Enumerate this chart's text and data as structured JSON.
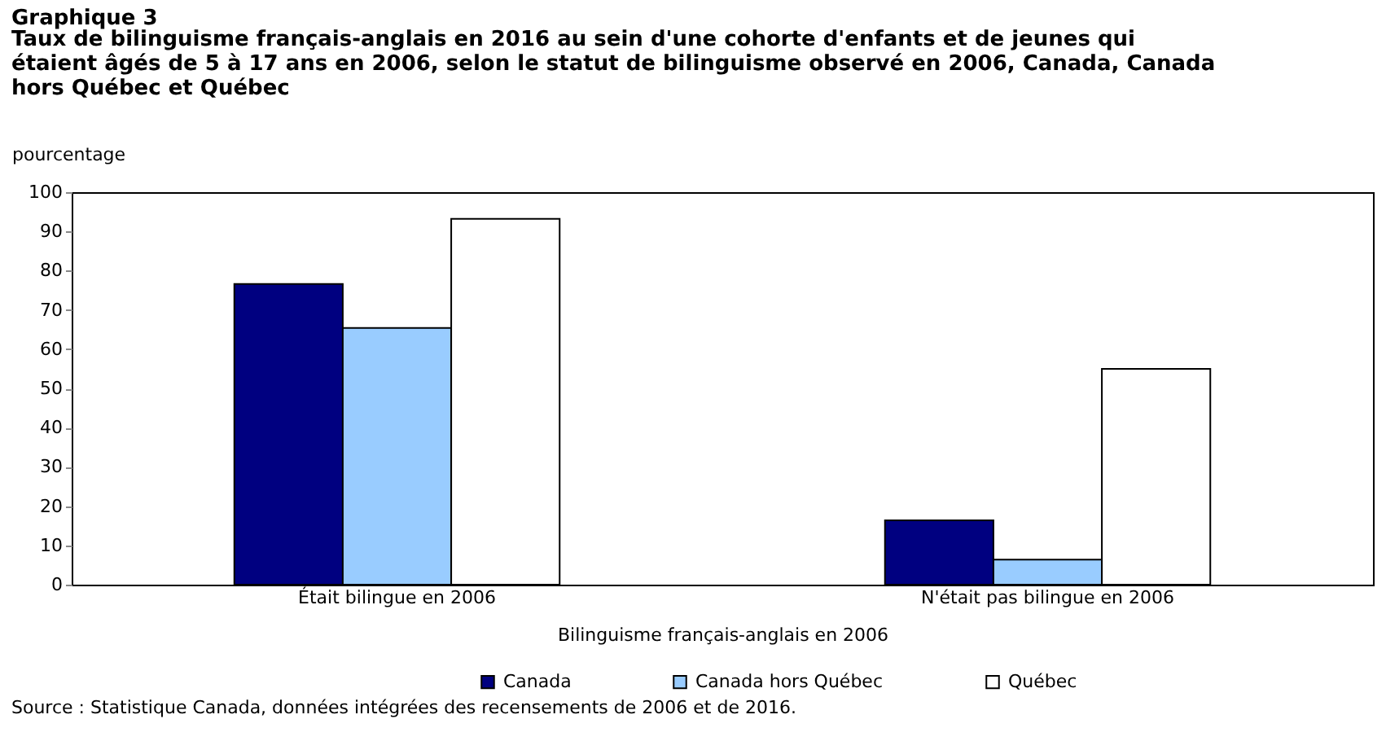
{
  "chart_data": {
    "type": "bar",
    "title": "Graphique 3",
    "subtitle": [
      "Taux de bilinguisme français-anglais en 2016 au sein d'une cohorte d'enfants et de jeunes qui",
      "étaient âgés de 5 à 17 ans en 2006, selon le statut de bilinguisme observé en 2006, Canada, Canada",
      "hors Québec et Québec"
    ],
    "ylabel": "pourcentage",
    "xlabel": "Bilinguisme français-anglais en 2006",
    "categories": [
      "Était bilingue en 2006",
      "N'était pas bilingue en 2006"
    ],
    "series": [
      {
        "name": "Canada",
        "color": "#000080",
        "values": [
          76.6,
          16.4
        ]
      },
      {
        "name": "Canada hors Québec",
        "color": "#99ccff",
        "values": [
          65.4,
          6.4
        ]
      },
      {
        "name": "Québec",
        "color": "#ffffff",
        "values": [
          93.2,
          55.0
        ]
      }
    ],
    "ylim": [
      0,
      100
    ],
    "yticks": [
      0,
      10,
      20,
      30,
      40,
      50,
      60,
      70,
      80,
      90,
      100
    ],
    "grid": false,
    "legend": "bottom",
    "annotations": [
      "Source : Statistique Canada, données intégrées des recensements de 2006 et de 2016."
    ]
  }
}
